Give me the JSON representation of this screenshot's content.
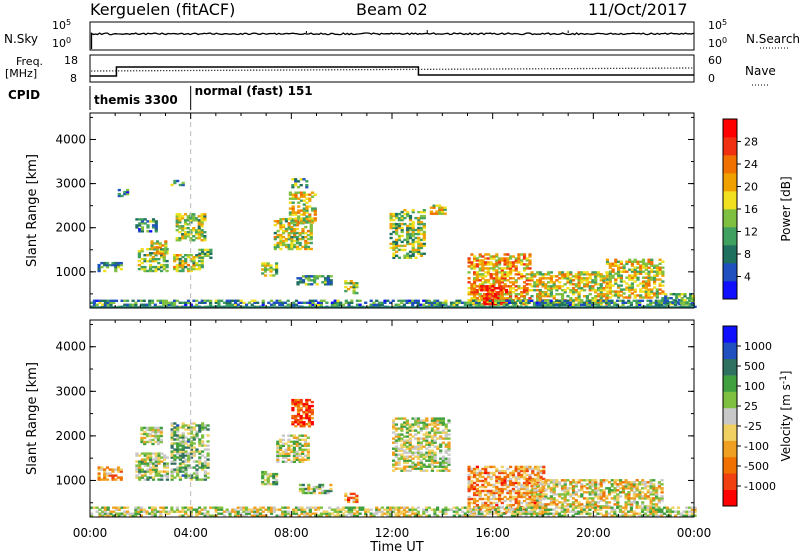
{
  "header": {
    "station": "Kerguelen (fitACF)",
    "beam": "Beam 02",
    "date": "11/Oct/2017"
  },
  "top_panels": {
    "nsky_label": "N.Sky",
    "nsearch_label": "N.Search",
    "freq_label_line1": "Freq.",
    "freq_label_line2": "[MHz]",
    "nave_label": "Nave",
    "cpid_label": "CPID",
    "noise_ticks": [
      "10^5",
      "10^0"
    ],
    "freq_ticks": [
      "18",
      "8"
    ],
    "nave_ticks": [
      "60",
      "0"
    ],
    "cpid_modes": [
      {
        "label": "themis 3300",
        "start_hour": 0,
        "end_hour": 4
      },
      {
        "label": "normal (fast) 151",
        "start_hour": 4,
        "end_hour": 24
      }
    ]
  },
  "chart_data": [
    {
      "type": "heatmap",
      "name": "power-panel",
      "ylabel": "Slant Range [km]",
      "xlabel": "",
      "x_range_hours": [
        0,
        24
      ],
      "ylim": [
        180,
        4600
      ],
      "y_ticks": [
        1000,
        2000,
        3000,
        4000
      ],
      "colorbar": {
        "label": "Power [dB]",
        "range": [
          0,
          30
        ],
        "ticks": [
          "28",
          "24",
          "20",
          "16",
          "12",
          "8",
          "4"
        ],
        "colors": [
          "#1010ff",
          "#2050c0",
          "#207060",
          "#40a060",
          "#80c040",
          "#f0e020",
          "#f0a000",
          "#f07000",
          "#f03010",
          "#ff0000"
        ]
      },
      "echo_regions": [
        {
          "t0": 0.3,
          "t1": 1.2,
          "r0": 1000,
          "r1": 1200,
          "level": 0.35
        },
        {
          "t0": 1.1,
          "t1": 1.5,
          "r0": 2700,
          "r1": 2850,
          "level": 0.3
        },
        {
          "t0": 1.8,
          "t1": 2.6,
          "r0": 1900,
          "r1": 2200,
          "level": 0.3
        },
        {
          "t0": 1.9,
          "t1": 3.0,
          "r0": 1000,
          "r1": 1500,
          "level": 0.45
        },
        {
          "t0": 2.4,
          "t1": 3.0,
          "r0": 1400,
          "r1": 1700,
          "level": 0.55
        },
        {
          "t0": 3.2,
          "t1": 3.7,
          "r0": 2950,
          "r1": 3050,
          "level": 0.3
        },
        {
          "t0": 3.4,
          "t1": 4.6,
          "r0": 1700,
          "r1": 2300,
          "level": 0.45
        },
        {
          "t0": 3.3,
          "t1": 4.5,
          "r0": 1000,
          "r1": 1400,
          "level": 0.5
        },
        {
          "t0": 4.3,
          "t1": 4.8,
          "r0": 1300,
          "r1": 1500,
          "level": 0.4
        },
        {
          "t0": 6.8,
          "t1": 7.4,
          "r0": 900,
          "r1": 1200,
          "level": 0.45
        },
        {
          "t0": 7.3,
          "t1": 8.8,
          "r0": 1500,
          "r1": 2200,
          "level": 0.5
        },
        {
          "t0": 7.9,
          "t1": 8.9,
          "r0": 2100,
          "r1": 2800,
          "level": 0.55
        },
        {
          "t0": 8.0,
          "t1": 8.6,
          "r0": 2900,
          "r1": 3100,
          "level": 0.3
        },
        {
          "t0": 8.2,
          "t1": 9.6,
          "r0": 700,
          "r1": 900,
          "level": 0.35
        },
        {
          "t0": 10.1,
          "t1": 10.6,
          "r0": 500,
          "r1": 800,
          "level": 0.5
        },
        {
          "t0": 11.9,
          "t1": 13.3,
          "r0": 1300,
          "r1": 2400,
          "level": 0.45
        },
        {
          "t0": 13.5,
          "t1": 14.1,
          "r0": 2300,
          "r1": 2500,
          "level": 0.55
        },
        {
          "t0": 15.0,
          "t1": 17.5,
          "r0": 250,
          "r1": 1400,
          "level": 0.65
        },
        {
          "t0": 15.5,
          "t1": 16.5,
          "r0": 250,
          "r1": 700,
          "level": 0.85
        },
        {
          "t0": 17.5,
          "t1": 20.5,
          "r0": 250,
          "r1": 1000,
          "level": 0.55
        },
        {
          "t0": 20.5,
          "t1": 22.7,
          "r0": 400,
          "r1": 1300,
          "level": 0.55
        },
        {
          "t0": 22.7,
          "t1": 24.0,
          "r0": 250,
          "r1": 500,
          "level": 0.35
        },
        {
          "t0": 0.0,
          "t1": 24.0,
          "r0": 190,
          "r1": 330,
          "level": 0.3
        }
      ]
    },
    {
      "type": "heatmap",
      "name": "velocity-panel",
      "ylabel": "Slant Range [km]",
      "xlabel": "Time UT",
      "x_range_hours": [
        0,
        24
      ],
      "x_ticks": [
        "00:00",
        "04:00",
        "08:00",
        "12:00",
        "16:00",
        "20:00",
        "00:00"
      ],
      "ylim": [
        180,
        4600
      ],
      "y_ticks": [
        1000,
        2000,
        3000,
        4000
      ],
      "colorbar": {
        "label": "Velocity [m s^-1]",
        "range": [
          -1200,
          1200
        ],
        "ticks": [
          "1000",
          "500",
          "100",
          "25",
          "-25",
          "-100",
          "-500",
          "-1000"
        ],
        "colors": [
          "#ff0000",
          "#f04010",
          "#f07000",
          "#f0a020",
          "#f0d060",
          "#c8c8c8",
          "#80c040",
          "#40a040",
          "#307060",
          "#2050c0",
          "#1010ff"
        ]
      },
      "echo_regions": [
        {
          "t0": 0.3,
          "t1": 1.2,
          "r0": 1000,
          "r1": 1300,
          "level": 0.3
        },
        {
          "t0": 1.8,
          "t1": 3.1,
          "r0": 1000,
          "r1": 1600,
          "level": 0.55
        },
        {
          "t0": 2.0,
          "t1": 2.8,
          "r0": 1800,
          "r1": 2200,
          "level": 0.5
        },
        {
          "t0": 3.2,
          "t1": 4.7,
          "r0": 1000,
          "r1": 2300,
          "level": 0.6
        },
        {
          "t0": 6.8,
          "t1": 7.4,
          "r0": 900,
          "r1": 1200,
          "level": 0.55
        },
        {
          "t0": 7.4,
          "t1": 8.7,
          "r0": 1400,
          "r1": 2000,
          "level": 0.5
        },
        {
          "t0": 8.0,
          "t1": 8.8,
          "r0": 2200,
          "r1": 2800,
          "level": 0.15
        },
        {
          "t0": 8.3,
          "t1": 9.6,
          "r0": 700,
          "r1": 900,
          "level": 0.55
        },
        {
          "t0": 10.1,
          "t1": 10.6,
          "r0": 500,
          "r1": 700,
          "level": 0.3
        },
        {
          "t0": 12.0,
          "t1": 14.2,
          "r0": 1200,
          "r1": 2400,
          "level": 0.5
        },
        {
          "t0": 15.0,
          "t1": 18.0,
          "r0": 250,
          "r1": 1300,
          "level": 0.3
        },
        {
          "t0": 17.5,
          "t1": 22.7,
          "r0": 400,
          "r1": 1000,
          "level": 0.45
        },
        {
          "t0": 0.0,
          "t1": 24.0,
          "r0": 190,
          "r1": 400,
          "level": 0.5
        }
      ]
    }
  ]
}
